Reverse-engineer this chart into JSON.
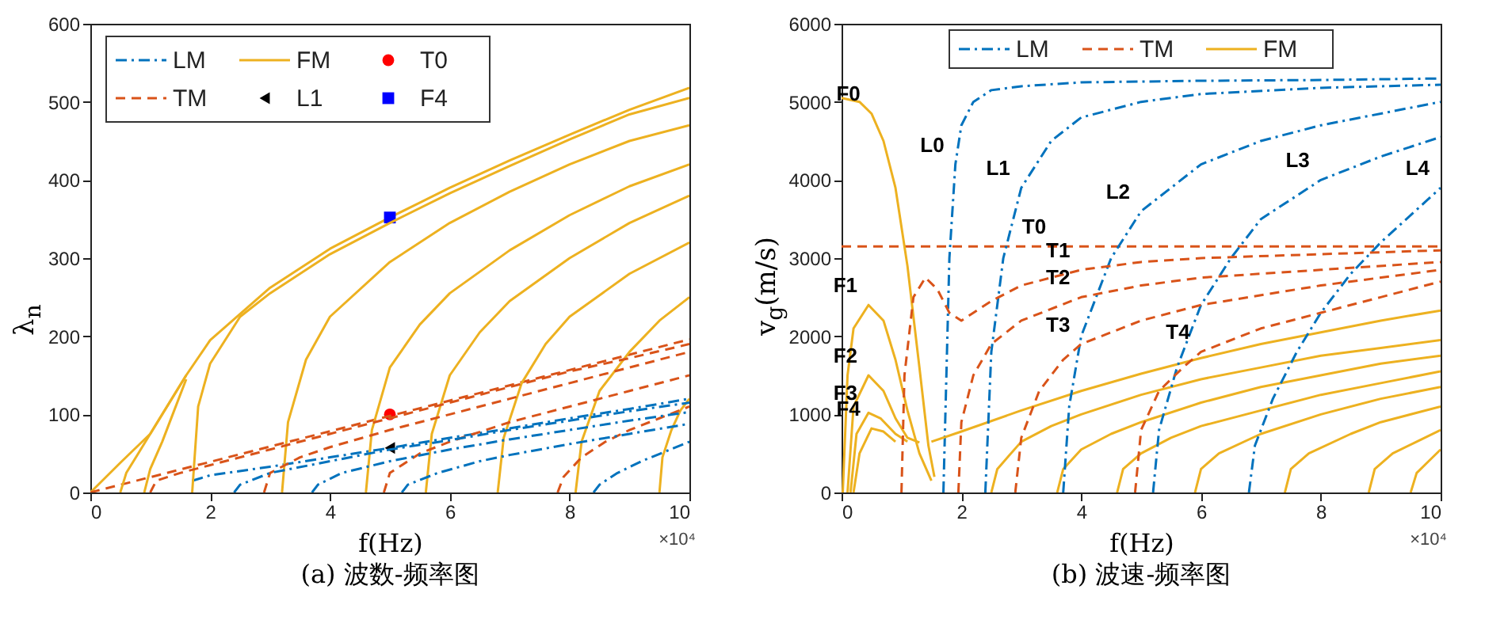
{
  "chart_data": [
    {
      "type": "line",
      "title": "(a)  波数-频率图",
      "xlabel": "f(Hz)",
      "ylabel": "λ$_{n}$",
      "xlim": [
        0,
        10
      ],
      "xticks": [
        0,
        2,
        4,
        6,
        8,
        10
      ],
      "ylim": [
        0,
        600
      ],
      "yticks": [
        0,
        100,
        200,
        300,
        400,
        500,
        600
      ],
      "grid": false,
      "legend": "top left",
      "annotations": [
        "×10⁴"
      ],
      "series": [
        {
          "name": "LM",
          "color": "#0072bd",
          "line_style": "dashdot",
          "x": [
            1.7,
            2,
            3,
            4,
            5,
            6,
            7,
            8,
            9,
            10
          ],
          "values": [
            15,
            22,
            33,
            45,
            57,
            70,
            82,
            95,
            107,
            120
          ]
        },
        {
          "name": "FM",
          "color": "#edb120",
          "line_style": "solid",
          "x": [
            0,
            0.5,
            1,
            1.6,
            2,
            3,
            4,
            5,
            6,
            7,
            8,
            9,
            10
          ],
          "values": [
            0,
            38,
            75,
            150,
            195,
            262,
            312,
            352,
            390,
            425,
            458,
            490,
            518
          ]
        },
        {
          "name": "T0",
          "type": "scatter",
          "marker": "circle",
          "color": "#ff0000",
          "x": [
            5
          ],
          "values": [
            100
          ]
        },
        {
          "name": "TM",
          "color": "#d95319",
          "line_style": "dashed",
          "x": [
            0,
            5,
            10
          ],
          "values": [
            0,
            98,
            196
          ]
        },
        {
          "name": "L1",
          "type": "scatter",
          "marker": "triangle",
          "color": "#000000",
          "x": [
            5
          ],
          "values": [
            57
          ]
        },
        {
          "name": "F4",
          "type": "scatter",
          "marker": "square",
          "color": "#0000ff",
          "x": [
            5
          ],
          "values": [
            352
          ]
        },
        {
          "color": "#edb120",
          "line_style": "solid",
          "x": [
            1.7,
            1.8,
            2,
            2.5,
            3,
            4,
            5,
            6,
            7,
            8,
            9,
            10
          ],
          "values": [
            0,
            110,
            165,
            225,
            255,
            305,
            345,
            383,
            418,
            452,
            484,
            505
          ]
        },
        {
          "color": "#edb120",
          "line_style": "solid",
          "x": [
            3.2,
            3.3,
            3.6,
            4,
            5,
            6,
            7,
            8,
            9,
            10
          ],
          "values": [
            0,
            90,
            170,
            225,
            295,
            345,
            385,
            420,
            450,
            470
          ]
        },
        {
          "color": "#edb120",
          "line_style": "solid",
          "x": [
            4.6,
            4.7,
            5,
            5.5,
            6,
            7,
            8,
            9,
            10
          ],
          "values": [
            0,
            80,
            160,
            215,
            255,
            310,
            355,
            392,
            420
          ]
        },
        {
          "color": "#edb120",
          "line_style": "solid",
          "x": [
            5.6,
            5.7,
            6,
            6.5,
            7,
            8,
            9,
            10
          ],
          "values": [
            0,
            75,
            150,
            205,
            245,
            300,
            345,
            380
          ]
        },
        {
          "color": "#edb120",
          "line_style": "solid",
          "x": [
            6.8,
            6.9,
            7.2,
            7.6,
            8,
            9,
            10
          ],
          "values": [
            0,
            70,
            140,
            190,
            225,
            280,
            320
          ]
        },
        {
          "color": "#edb120",
          "line_style": "solid",
          "x": [
            8.1,
            8.2,
            8.5,
            9,
            9.5,
            10
          ],
          "values": [
            0,
            65,
            130,
            180,
            220,
            250
          ]
        },
        {
          "color": "#edb120",
          "line_style": "solid",
          "x": [
            9.5,
            9.55,
            9.7,
            9.85,
            10
          ],
          "values": [
            0,
            45,
            80,
            105,
            120
          ]
        },
        {
          "color": "#edb120",
          "line_style": "solid",
          "x": [
            0.5,
            0.6,
            0.8,
            1.2,
            1.6
          ],
          "values": [
            0,
            25,
            50,
            100,
            150
          ]
        },
        {
          "color": "#edb120",
          "line_style": "solid",
          "x": [
            0.9,
            1,
            1.2,
            1.4,
            1.6
          ],
          "values": [
            0,
            30,
            65,
            105,
            145
          ]
        },
        {
          "color": "#d95319",
          "line_style": "dashed",
          "x": [
            1,
            1.1,
            1.5,
            2,
            3,
            4,
            5,
            6,
            7,
            8,
            9,
            10
          ],
          "values": [
            0,
            15,
            25,
            35,
            55,
            75,
            95,
            115,
            135,
            155,
            172,
            190
          ]
        },
        {
          "color": "#d95319",
          "line_style": "dashed",
          "x": [
            2.9,
            3,
            3.5,
            4,
            5,
            6,
            7,
            8,
            9,
            10
          ],
          "values": [
            0,
            25,
            45,
            58,
            80,
            100,
            120,
            140,
            160,
            180
          ]
        },
        {
          "color": "#d95319",
          "line_style": "dashed",
          "x": [
            4.9,
            5,
            5.5,
            6,
            7,
            8,
            9,
            10
          ],
          "values": [
            0,
            25,
            50,
            65,
            90,
            110,
            130,
            150
          ]
        },
        {
          "color": "#d95319",
          "line_style": "dashed",
          "x": [
            7.8,
            7.9,
            8.2,
            8.6,
            9,
            9.5,
            10
          ],
          "values": [
            0,
            20,
            45,
            65,
            80,
            95,
            110
          ]
        },
        {
          "color": "#0072bd",
          "line_style": "dashdot",
          "x": [
            2.4,
            2.5,
            3,
            4,
            5,
            6,
            7,
            8,
            9,
            10
          ],
          "values": [
            0,
            10,
            25,
            40,
            55,
            67,
            80,
            92,
            104,
            115
          ]
        },
        {
          "color": "#0072bd",
          "line_style": "dashdot",
          "x": [
            3.7,
            3.8,
            4.2,
            5,
            6,
            7,
            8,
            9,
            10
          ],
          "values": [
            0,
            10,
            25,
            40,
            55,
            68,
            80,
            92,
            103
          ]
        },
        {
          "color": "#0072bd",
          "line_style": "dashdot",
          "x": [
            5.2,
            5.3,
            5.8,
            6.5,
            7,
            8,
            9,
            10
          ],
          "values": [
            0,
            10,
            25,
            40,
            48,
            62,
            75,
            88
          ]
        },
        {
          "color": "#0072bd",
          "line_style": "dashdot",
          "x": [
            8.4,
            8.5,
            8.8,
            9.2,
            10
          ],
          "values": [
            0,
            10,
            25,
            40,
            65
          ]
        }
      ]
    },
    {
      "type": "line",
      "title": "(b)  波速-频率图",
      "xlabel": "f(Hz)",
      "ylabel": "v$_{g}$(m/s)",
      "xlim": [
        0,
        10
      ],
      "xticks": [
        0,
        2,
        4,
        6,
        8,
        10
      ],
      "ylim": [
        0,
        6000
      ],
      "yticks": [
        0,
        1000,
        2000,
        3000,
        4000,
        5000,
        6000
      ],
      "grid": false,
      "legend": "top",
      "annotations": [
        "×10⁴",
        {
          "text": "F0",
          "x": 0.5,
          "y": 4850
        },
        {
          "text": "F1",
          "x": 0.45,
          "y": 2400
        },
        {
          "text": "F2",
          "x": 0.45,
          "y": 1500
        },
        {
          "text": "F3",
          "x": 0.45,
          "y": 1020
        },
        {
          "text": "F4",
          "x": 0.5,
          "y": 820
        },
        {
          "text": "L0",
          "x": 1.9,
          "y": 4200
        },
        {
          "text": "L1",
          "x": 3,
          "y": 3900
        },
        {
          "text": "L2",
          "x": 5,
          "y": 3600
        },
        {
          "text": "L3",
          "x": 8,
          "y": 4000
        },
        {
          "text": "L4",
          "x": 10,
          "y": 3900
        },
        {
          "text": "T0",
          "x": 3.6,
          "y": 3150
        },
        {
          "text": "T1",
          "x": 4,
          "y": 2850
        },
        {
          "text": "T2",
          "x": 4,
          "y": 2500
        },
        {
          "text": "T3",
          "x": 4,
          "y": 1900
        },
        {
          "text": "T4",
          "x": 6,
          "y": 1800
        }
      ],
      "series": [
        {
          "name": "LM",
          "color": "#0072bd",
          "line_style": "dashdot",
          "x": [
            1.7,
            1.75,
            1.8,
            1.9,
            2,
            2.2,
            2.5,
            3,
            4,
            6,
            8,
            10
          ],
          "values": [
            0,
            1500,
            3000,
            4200,
            4700,
            5000,
            5150,
            5200,
            5250,
            5270,
            5280,
            5300
          ]
        },
        {
          "name": "TM",
          "color": "#d95319",
          "line_style": "dashed",
          "x": [
            0,
            3.6,
            10
          ],
          "values": [
            3150,
            3150,
            3150
          ]
        },
        {
          "name": "FM",
          "color": "#edb120",
          "line_style": "solid",
          "x": [
            0,
            0.3,
            0.5,
            0.7,
            0.9,
            1.1,
            1.3,
            1.45,
            1.55
          ],
          "values": [
            5050,
            5000,
            4850,
            4500,
            3900,
            2900,
            1600,
            600,
            200
          ]
        },
        {
          "color": "#edb120",
          "line_style": "solid",
          "x": [
            0.02,
            0.1,
            0.2,
            0.45,
            0.7,
            0.9,
            1.1,
            1.3,
            1.5
          ],
          "values": [
            0,
            1500,
            2100,
            2400,
            2200,
            1700,
            1050,
            500,
            150
          ]
        },
        {
          "color": "#edb120",
          "line_style": "solid",
          "x": [
            0.1,
            0.2,
            0.45,
            0.7,
            0.9,
            1.1,
            1.3
          ],
          "values": [
            0,
            1100,
            1500,
            1300,
            950,
            700,
            640
          ]
        },
        {
          "color": "#edb120",
          "line_style": "solid",
          "x": [
            0.15,
            0.25,
            0.45,
            0.65,
            0.9,
            1.1
          ],
          "values": [
            0,
            750,
            1020,
            950,
            750,
            650
          ]
        },
        {
          "color": "#edb120",
          "line_style": "solid",
          "x": [
            0.2,
            0.3,
            0.5,
            0.7,
            0.9
          ],
          "values": [
            0,
            500,
            820,
            780,
            650
          ]
        },
        {
          "color": "#edb120",
          "line_style": "solid",
          "x": [
            1.5,
            2,
            3,
            4,
            5,
            6,
            7,
            8,
            9,
            10
          ],
          "values": [
            650,
            780,
            1050,
            1300,
            1520,
            1720,
            1900,
            2050,
            2200,
            2330
          ]
        },
        {
          "color": "#edb120",
          "line_style": "solid",
          "x": [
            2.5,
            2.6,
            3,
            3.5,
            4,
            5,
            6,
            7,
            8,
            9,
            10
          ],
          "values": [
            0,
            300,
            650,
            850,
            1000,
            1250,
            1450,
            1600,
            1750,
            1850,
            1950
          ]
        },
        {
          "color": "#edb120",
          "line_style": "solid",
          "x": [
            3.6,
            3.7,
            4,
            4.5,
            5,
            6,
            7,
            8,
            9,
            10
          ],
          "values": [
            0,
            300,
            550,
            750,
            900,
            1150,
            1350,
            1500,
            1650,
            1750
          ]
        },
        {
          "color": "#edb120",
          "line_style": "solid",
          "x": [
            4.6,
            4.7,
            5,
            5.5,
            6,
            7,
            8,
            9,
            10
          ],
          "values": [
            0,
            300,
            500,
            700,
            850,
            1050,
            1250,
            1400,
            1550
          ]
        },
        {
          "color": "#edb120",
          "line_style": "solid",
          "x": [
            5.9,
            6,
            6.3,
            7,
            8,
            9,
            10
          ],
          "values": [
            0,
            300,
            500,
            750,
            1000,
            1200,
            1350
          ]
        },
        {
          "color": "#edb120",
          "line_style": "solid",
          "x": [
            7.4,
            7.5,
            7.8,
            8.5,
            9,
            10
          ],
          "values": [
            0,
            300,
            500,
            750,
            900,
            1100
          ]
        },
        {
          "color": "#edb120",
          "line_style": "solid",
          "x": [
            8.8,
            8.9,
            9.2,
            9.6,
            10
          ],
          "values": [
            0,
            300,
            500,
            650,
            800
          ]
        },
        {
          "color": "#edb120",
          "line_style": "solid",
          "x": [
            9.5,
            9.6,
            9.8,
            10
          ],
          "values": [
            0,
            250,
            400,
            550
          ]
        },
        {
          "color": "#0072bd",
          "line_style": "dashdot",
          "x": [
            2.4,
            2.5,
            2.7,
            3,
            3.5,
            4,
            5,
            6,
            8,
            10
          ],
          "values": [
            0,
            1800,
            3000,
            3900,
            4500,
            4800,
            5000,
            5100,
            5180,
            5220
          ]
        },
        {
          "color": "#0072bd",
          "line_style": "dashdot",
          "x": [
            3.7,
            3.8,
            4,
            4.5,
            5,
            6,
            7,
            8,
            10
          ],
          "values": [
            0,
            1100,
            2000,
            3000,
            3600,
            4200,
            4500,
            4700,
            5000
          ]
        },
        {
          "color": "#0072bd",
          "line_style": "dashdot",
          "x": [
            5.2,
            5.3,
            5.6,
            6,
            6.5,
            7,
            8,
            9,
            10
          ],
          "values": [
            0,
            800,
            1600,
            2400,
            3000,
            3500,
            4000,
            4300,
            4550
          ]
        },
        {
          "color": "#0072bd",
          "line_style": "dashdot",
          "x": [
            6.8,
            6.9,
            7.2,
            7.6,
            8,
            8.5,
            9,
            10
          ],
          "values": [
            0,
            600,
            1200,
            1800,
            2300,
            2800,
            3200,
            3900
          ]
        },
        {
          "color": "#d95319",
          "line_style": "dashed",
          "x": [
            1,
            1.05,
            1.2,
            1.4,
            1.6,
            1.8,
            2,
            2.5,
            3,
            4,
            5,
            6,
            8,
            10
          ],
          "values": [
            0,
            1500,
            2500,
            2750,
            2600,
            2300,
            2200,
            2450,
            2650,
            2850,
            2950,
            3000,
            3050,
            3100
          ]
        },
        {
          "color": "#d95319",
          "line_style": "dashed",
          "x": [
            1.95,
            2,
            2.2,
            2.5,
            3,
            4,
            5,
            6,
            8,
            10
          ],
          "values": [
            0,
            900,
            1500,
            1900,
            2200,
            2500,
            2650,
            2750,
            2850,
            2950
          ]
        },
        {
          "color": "#d95319",
          "line_style": "dashed",
          "x": [
            2.9,
            3,
            3.3,
            3.7,
            4,
            5,
            6,
            8,
            10
          ],
          "values": [
            0,
            700,
            1300,
            1700,
            1900,
            2200,
            2400,
            2650,
            2850
          ]
        },
        {
          "color": "#d95319",
          "line_style": "dashed",
          "x": [
            4.9,
            5,
            5.3,
            5.7,
            6,
            7,
            8,
            9,
            10
          ],
          "values": [
            0,
            800,
            1300,
            1600,
            1800,
            2100,
            2300,
            2500,
            2700
          ]
        }
      ]
    }
  ]
}
